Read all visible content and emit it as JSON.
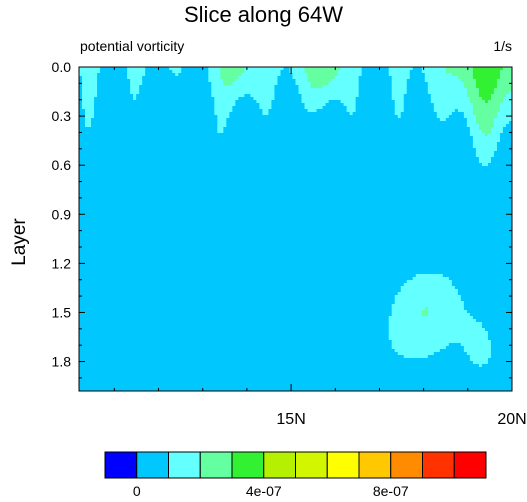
{
  "chart_data": {
    "type": "contour",
    "title": "Slice along 64W",
    "subtitle_left": "potential vorticity",
    "subtitle_right": "1/s",
    "ylabel": "Layer",
    "x_tick_labels": [
      "15N",
      "20N"
    ],
    "x_ticks": [
      15,
      20
    ],
    "xlim": [
      10.2,
      20
    ],
    "y_tick_labels": [
      "0.0",
      "0.3",
      "0.6",
      "0.9",
      "1.2",
      "1.5",
      "1.8"
    ],
    "y_ticks": [
      0.0,
      0.3,
      0.6,
      0.9,
      1.2,
      1.5,
      1.8
    ],
    "ylim": [
      0.0,
      1.98
    ],
    "y_reversed": true,
    "colorbar": {
      "levels": [
        "0",
        "4e-07",
        "8e-07"
      ],
      "level_values": [
        0,
        4e-07,
        8e-07
      ],
      "bins": 12,
      "colors": [
        "#0000ff",
        "#00c8ff",
        "#64ffff",
        "#64ffa0",
        "#32f032",
        "#b4f000",
        "#d2f500",
        "#ffff00",
        "#ffc800",
        "#ff8c00",
        "#ff3200",
        "#ff0000"
      ]
    }
  }
}
